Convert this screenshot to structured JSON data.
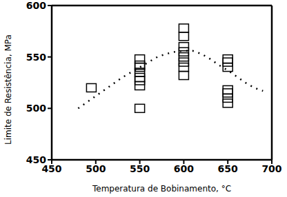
{
  "chart_data": {
    "type": "scatter",
    "x_label": "Temperatura de Bobinamento, °C",
    "y_label": "Limite de Resistência, MPa",
    "xlim": [
      450,
      700
    ],
    "xticks": [
      450,
      500,
      550,
      600,
      650,
      700
    ],
    "ylim": [
      450,
      600
    ],
    "yticks": [
      450,
      500,
      550,
      600
    ],
    "series": [
      {
        "type": "scatter",
        "marker": "square",
        "color": "#000000",
        "x": [
          495,
          550,
          550,
          550,
          550,
          550,
          550,
          550,
          550,
          600,
          600,
          600,
          600,
          600,
          600,
          600,
          600,
          650,
          650,
          650,
          650,
          650,
          650,
          650
        ],
        "values": [
          520,
          548,
          542,
          540,
          535,
          530,
          527,
          522,
          500,
          578,
          570,
          560,
          555,
          550,
          545,
          540,
          532,
          548,
          545,
          540,
          518,
          515,
          510,
          505
        ]
      },
      {
        "type": "line",
        "line_style": "dotted",
        "color": "#000000",
        "x": [
          480,
          490,
          500,
          510,
          520,
          530,
          540,
          550,
          560,
          570,
          580,
          590,
          600,
          610,
          620,
          630,
          640,
          650,
          660,
          670,
          680,
          690
        ],
        "values": [
          500,
          506,
          512,
          518,
          524,
          530,
          535,
          540,
          545,
          550,
          553,
          555,
          556,
          556,
          553,
          548,
          542,
          537,
          531,
          525,
          520,
          517
        ]
      }
    ]
  }
}
